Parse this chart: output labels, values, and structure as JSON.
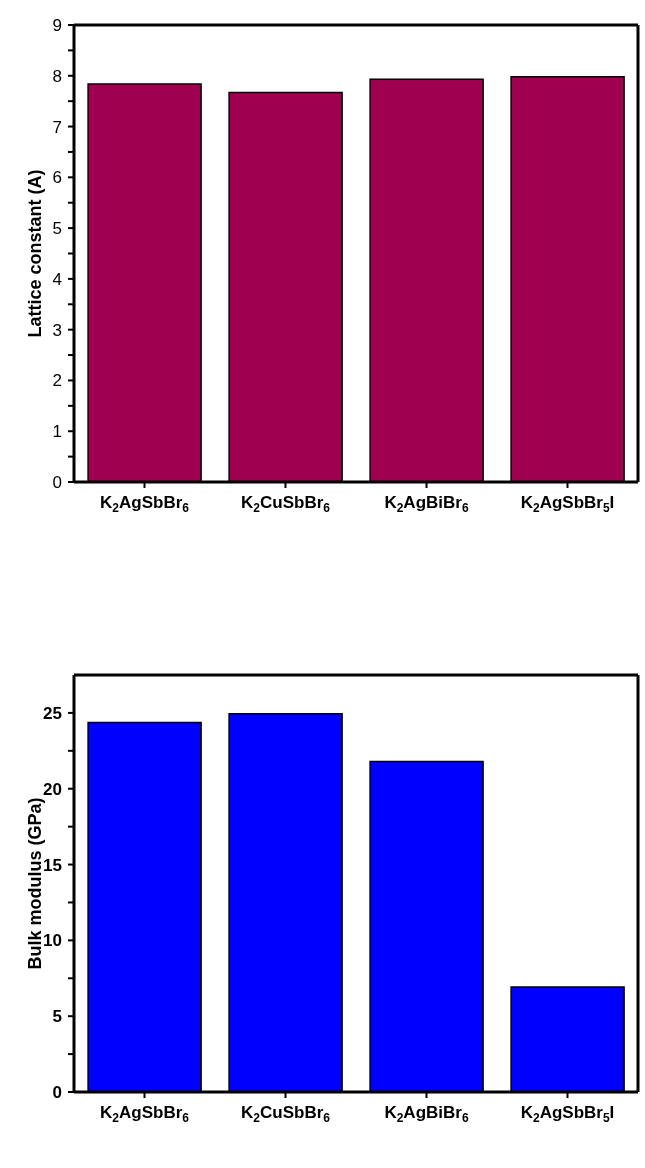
{
  "chart_data": [
    {
      "type": "bar",
      "categories": [
        "K$_{2}$AgSbBr$_{6}$",
        "K$_{2}$CuSbBr$_{6}$",
        "K$_{2}$AgBiBr$_{6}$",
        "K$_{2}$AgSbBr$_{5}$I"
      ],
      "values": [
        7.84,
        7.67,
        7.93,
        7.98
      ],
      "color": "#a00050",
      "ylabel": "Lattice constant (A)",
      "ylim": [
        0,
        9
      ],
      "yticks": [
        0,
        {
          "value": 0.5,
          "label": null
        },
        1,
        {
          "value": 1.5,
          "label": null
        },
        2,
        {
          "value": 2.5,
          "label": null
        },
        3,
        {
          "value": 3.5,
          "label": null
        },
        4,
        {
          "value": 4.5,
          "label": null
        },
        5,
        {
          "value": 5.5,
          "label": null
        },
        6,
        {
          "value": 6.5,
          "label": null
        },
        7,
        {
          "value": 7.5,
          "label": null
        },
        8,
        {
          "value": 8.5,
          "label": null
        },
        9
      ],
      "grid": false,
      "legend": false
    },
    {
      "type": "bar",
      "categories": [
        "K$_{2}$AgSbBr$_{6}$",
        "K$_{2}$CuSbBr$_{6}$",
        "K$_{2}$AgBiBr$_{6}$",
        "K$_{2}$AgSbBr$_{5}$I"
      ],
      "values": [
        24.37,
        24.95,
        21.8,
        6.92
      ],
      "color": "#0000ff",
      "ylabel": "Bulk modulus (GPa)",
      "ylim": [
        0,
        27.5
      ],
      "yticks": [
        0,
        {
          "value": 2.5,
          "label": null
        },
        5,
        {
          "value": 7.5,
          "label": null
        },
        10,
        {
          "value": 12.5,
          "label": null
        },
        15,
        {
          "value": 17.5,
          "label": null
        },
        20,
        {
          "value": 22.5,
          "label": null
        },
        25
      ],
      "grid": false,
      "legend": false
    }
  ]
}
